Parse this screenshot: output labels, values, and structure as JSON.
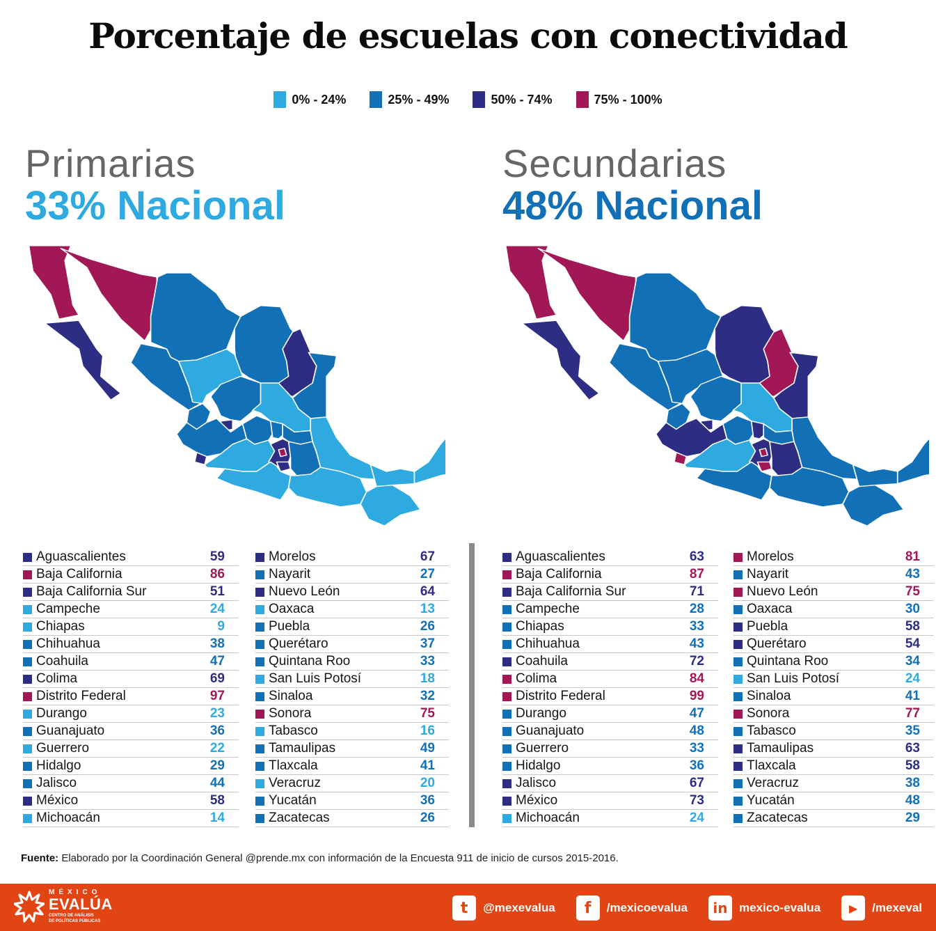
{
  "title": "Porcentaje de escuelas con conectividad",
  "colors": {
    "range_0_24": "#2eaae1",
    "range_25_49": "#1270b7",
    "range_50_74": "#2d2e83",
    "range_75_100": "#a21756",
    "footer": "#e24514",
    "divider": "#8b8b8a"
  },
  "legend": [
    {
      "label": "0% - 24%",
      "color": "#2eaae1"
    },
    {
      "label": "25% - 49%",
      "color": "#1270b7"
    },
    {
      "label": "50% - 74%",
      "color": "#2d2e83"
    },
    {
      "label": "75% - 100%",
      "color": "#a21756"
    }
  ],
  "primarias": {
    "heading": "Primarias",
    "national": "33% Nacional",
    "national_color": "#2eaae1"
  },
  "secundarias": {
    "heading": "Secundarias",
    "national": "48% Nacional",
    "national_color": "#1270b7"
  },
  "source": {
    "label": "Fuente:",
    "text": " Elaborado por la Coordinación General @prende.mx con información de la Encuesta 911 de inicio de cursos 2015-2016."
  },
  "footer": {
    "logo": {
      "top": "MÉXICO",
      "main": "EVALÚA",
      "sub1": "CENTRO DE ANÁLISIS",
      "sub2": "DE POLÍTICAS PÚBLICAS"
    },
    "socials": [
      {
        "icon": "twitter-icon",
        "glyph": "t",
        "label": "@mexevalua"
      },
      {
        "icon": "facebook-icon",
        "glyph": "f",
        "label": "/mexicoevalua"
      },
      {
        "icon": "linkedin-icon",
        "glyph": "in",
        "label": "mexico-evalua"
      },
      {
        "icon": "youtube-icon",
        "glyph": "▶",
        "label": "/mexeval"
      }
    ]
  },
  "chart_data": [
    {
      "type": "table",
      "title": "Primarias — 33% Nacional",
      "subtitle": "Porcentaje de escuelas con conectividad",
      "legend": [
        "0% - 24%",
        "25% - 49%",
        "50% - 74%",
        "75% - 100%"
      ],
      "map": "choropleth of Mexico by state",
      "categories": [
        "Aguascalientes",
        "Baja California",
        "Baja California Sur",
        "Campeche",
        "Chiapas",
        "Chihuahua",
        "Coahuila",
        "Colima",
        "Distrito Federal",
        "Durango",
        "Guanajuato",
        "Guerrero",
        "Hidalgo",
        "Jalisco",
        "México",
        "Michoacán",
        "Morelos",
        "Nayarit",
        "Nuevo León",
        "Oaxaca",
        "Puebla",
        "Querétaro",
        "Quintana Roo",
        "San Luis Potosí",
        "Sinaloa",
        "Sonora",
        "Tabasco",
        "Tamaulipas",
        "Tlaxcala",
        "Veracruz",
        "Yucatán",
        "Zacatecas"
      ],
      "values": [
        59,
        86,
        51,
        24,
        9,
        38,
        47,
        69,
        97,
        23,
        36,
        22,
        29,
        44,
        58,
        14,
        67,
        27,
        64,
        13,
        26,
        37,
        33,
        18,
        32,
        75,
        16,
        49,
        41,
        20,
        36,
        26
      ],
      "national": 33
    },
    {
      "type": "table",
      "title": "Secundarias — 48% Nacional",
      "subtitle": "Porcentaje de escuelas con conectividad",
      "legend": [
        "0% - 24%",
        "25% - 49%",
        "50% - 74%",
        "75% - 100%"
      ],
      "map": "choropleth of Mexico by state",
      "categories": [
        "Aguascalientes",
        "Baja California",
        "Baja California Sur",
        "Campeche",
        "Chiapas",
        "Chihuahua",
        "Coahuila",
        "Colima",
        "Distrito Federal",
        "Durango",
        "Guanajuato",
        "Guerrero",
        "Hidalgo",
        "Jalisco",
        "México",
        "Michoacán",
        "Morelos",
        "Nayarit",
        "Nuevo León",
        "Oaxaca",
        "Puebla",
        "Querétaro",
        "Quintana Roo",
        "San Luis Potosí",
        "Sinaloa",
        "Sonora",
        "Tabasco",
        "Tamaulipas",
        "Tlaxcala",
        "Veracruz",
        "Yucatán",
        "Zacatecas"
      ],
      "values": [
        63,
        87,
        71,
        28,
        33,
        43,
        72,
        84,
        99,
        47,
        48,
        33,
        36,
        67,
        73,
        24,
        81,
        43,
        75,
        30,
        58,
        54,
        34,
        24,
        41,
        77,
        35,
        63,
        58,
        38,
        48,
        29
      ],
      "national": 48
    }
  ]
}
